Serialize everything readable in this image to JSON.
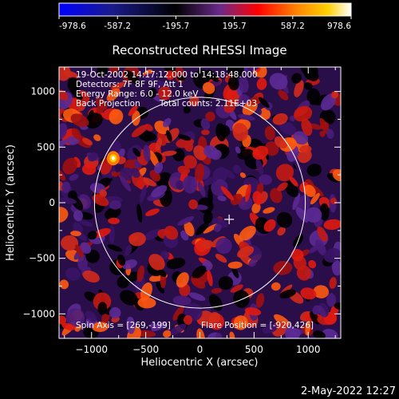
{
  "colorbar": {
    "tick_labels": [
      "-978.6",
      "-587.2",
      "-195.7",
      "195.7",
      "587.2",
      "978.6"
    ],
    "range": [
      -978.6,
      978.6
    ],
    "colors": [
      "#0000ff",
      "#1a1a8c",
      "#000000",
      "#6a2a8a",
      "#ff0000",
      "#ff8a00",
      "#ffd000",
      "#ffffff"
    ]
  },
  "chart_data": {
    "type": "heatmap",
    "title": "Reconstructed RHESSI Image",
    "xlabel": "Heliocentric X (arcsec)",
    "ylabel": "Heliocentric Y (arcsec)",
    "xlim": [
      -1300,
      1300
    ],
    "ylim": [
      -1220,
      1220
    ],
    "xticks": [
      -1000,
      -500,
      0,
      500,
      1000
    ],
    "yticks": [
      -1000,
      -500,
      0,
      500,
      1000
    ],
    "xtick_labels": [
      "−1000",
      "−500",
      "0",
      "500",
      "1000"
    ],
    "ytick_labels": [
      "−1000",
      "−500",
      "0",
      "500",
      "1000"
    ],
    "solar_limb": {
      "center": [
        0,
        0
      ],
      "radius": 960
    },
    "marker": {
      "type": "cross",
      "x": 270,
      "y": -150
    },
    "info": {
      "time_range": "19-Oct-2002 14:17:12.000 to 14:18:48.000",
      "detectors": "Detectors: 7F 8F 9F, Att 1",
      "energy": "Energy Range: 6.0 - 12.0 keV",
      "method": "Back Projection",
      "counts": "Total counts: 2.11E+03"
    },
    "footer_left": "Spin Axis = [269,-199]",
    "footer_right": "Flare Position = [-920,426]"
  },
  "timestamp": "2-May-2022 12:27"
}
